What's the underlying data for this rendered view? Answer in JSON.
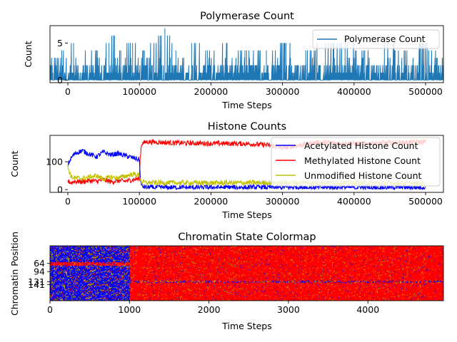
{
  "chart_data": [
    {
      "type": "line",
      "title": "Polymerase Count",
      "xlabel": "Time Steps",
      "ylabel": "Count",
      "xlim": [
        0,
        500000
      ],
      "ylim": [
        -0.35,
        7.35
      ],
      "x_ticks": [
        0,
        100000,
        200000,
        300000,
        400000,
        500000
      ],
      "x_tick_labels": [
        "0",
        "100000",
        "200000",
        "300000",
        "400000",
        "500000"
      ],
      "y_ticks": [
        0,
        5
      ],
      "y_tick_labels": [
        "0",
        "5"
      ],
      "legend": "upper-right",
      "series": [
        {
          "name": "Polymerase Count",
          "color": "#1f77b4",
          "x": [
            0,
            15000,
            30000,
            45000,
            60000,
            75000,
            82000,
            90000,
            105000,
            120000,
            135000,
            146000,
            160000,
            180000,
            200000,
            225000,
            250000,
            275000,
            300000,
            325000,
            350000,
            375000,
            400000,
            425000,
            450000,
            475000,
            500000
          ],
          "peaks": [
            3,
            4,
            5,
            4,
            4,
            5,
            6,
            4,
            5,
            4,
            5,
            7,
            4,
            5,
            4,
            5,
            4,
            4,
            5,
            4,
            5,
            5,
            4,
            5,
            4,
            5,
            3
          ]
        }
      ]
    },
    {
      "type": "line",
      "title": "Histone Counts",
      "xlabel": "Time Steps",
      "ylabel": "Count",
      "xlim": [
        0,
        500000
      ],
      "ylim": [
        -10,
        195
      ],
      "x_ticks": [
        0,
        100000,
        200000,
        300000,
        400000,
        500000
      ],
      "x_tick_labels": [
        "0",
        "100000",
        "200000",
        "300000",
        "400000",
        "500000"
      ],
      "y_ticks": [
        0,
        100
      ],
      "y_tick_labels": [
        "0",
        "100"
      ],
      "legend": "right",
      "series": [
        {
          "name": "Acetylated Histone Count",
          "color": "#0000ff",
          "x": [
            0,
            5000,
            10000,
            20000,
            30000,
            40000,
            50000,
            60000,
            70000,
            80000,
            90000,
            100000,
            101000,
            103000,
            110000,
            200000,
            300000,
            400000,
            500000
          ],
          "values": [
            90,
            115,
            130,
            140,
            128,
            118,
            135,
            125,
            130,
            122,
            115,
            108,
            50,
            12,
            8,
            8,
            8,
            8,
            8
          ]
        },
        {
          "name": "Methylated Histone Count",
          "color": "#ff0000",
          "x": [
            0,
            5000,
            10000,
            20000,
            30000,
            40000,
            50000,
            60000,
            70000,
            80000,
            90000,
            100000,
            101000,
            103000,
            110000,
            150000,
            200000,
            250000,
            280000,
            300000,
            350000,
            400000,
            450000,
            500000
          ],
          "values": [
            30,
            25,
            30,
            28,
            32,
            30,
            35,
            28,
            32,
            30,
            35,
            40,
            110,
            165,
            172,
            168,
            166,
            165,
            160,
            150,
            170,
            165,
            168,
            172
          ]
        },
        {
          "name": "Unmodified Histone Count",
          "color": "#bfbf00",
          "x": [
            0,
            5000,
            10000,
            20000,
            30000,
            40000,
            50000,
            60000,
            70000,
            80000,
            90000,
            100000,
            101000,
            103000,
            110000,
            200000,
            300000,
            400000,
            500000
          ],
          "values": [
            80,
            45,
            42,
            40,
            45,
            50,
            38,
            45,
            42,
            48,
            55,
            52,
            40,
            28,
            25,
            24,
            25,
            24,
            22
          ]
        }
      ]
    },
    {
      "type": "heatmap",
      "title": "Chromatin State Colormap",
      "xlabel": "Time Steps",
      "ylabel": "Chromatin Position",
      "xlim": [
        0,
        4950
      ],
      "ylim": [
        0,
        200
      ],
      "x_ticks": [
        0,
        1000,
        2000,
        3000,
        4000
      ],
      "x_tick_labels": [
        "0",
        "1000",
        "2000",
        "3000",
        "4000"
      ],
      "y_ticks": [
        64,
        94,
        131,
        141
      ],
      "y_tick_labels": [
        "64",
        "94",
        "131",
        "141"
      ],
      "state_colors": [
        "#ff0000",
        "#0000ff",
        "#bfbf00"
      ],
      "transition_time": 1000,
      "bands": [
        {
          "from": 60,
          "to": 72,
          "state": "methylated"
        },
        {
          "from": 128,
          "to": 134,
          "state": "acetylated"
        }
      ]
    }
  ]
}
